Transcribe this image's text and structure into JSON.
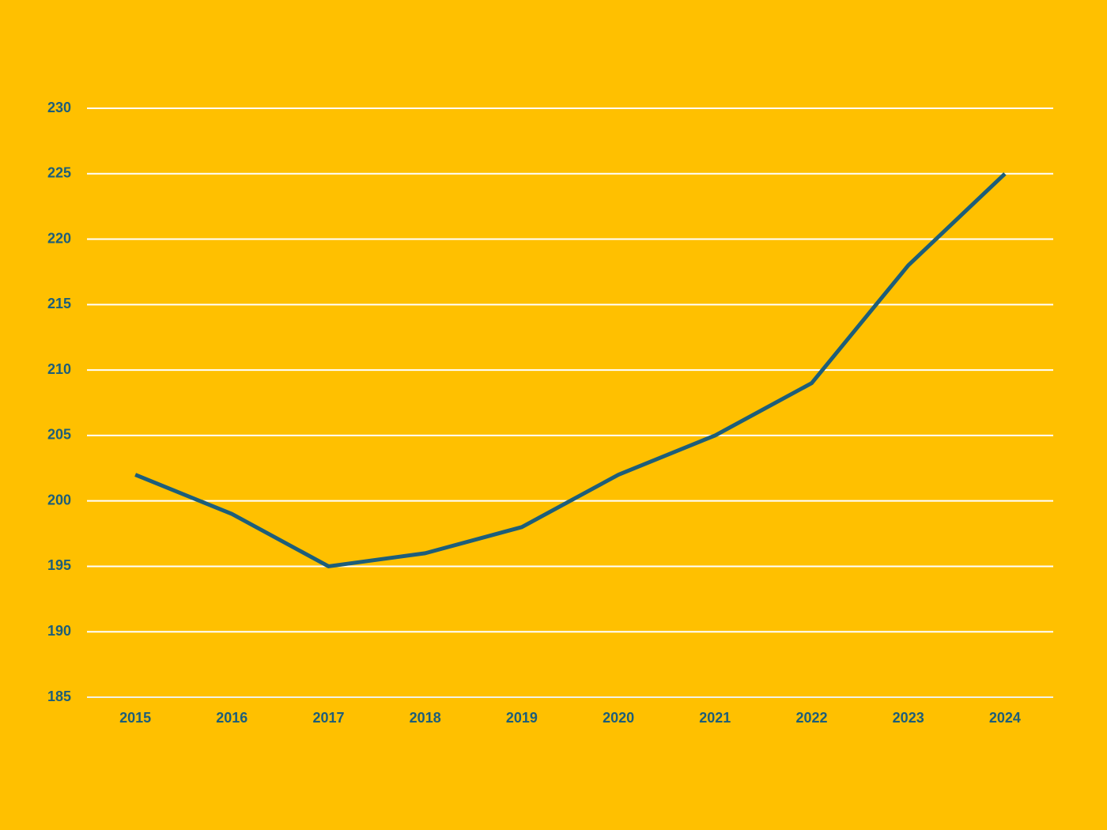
{
  "chart_data": {
    "type": "line",
    "categories": [
      "2015",
      "2016",
      "2017",
      "2018",
      "2019",
      "2020",
      "2021",
      "2022",
      "2023",
      "2024"
    ],
    "values": [
      202,
      199,
      195,
      196,
      198,
      202,
      205,
      209,
      218,
      225
    ],
    "color": "#1d5e7a",
    "ylim": [
      185,
      230
    ],
    "yticks": [
      185,
      190,
      195,
      200,
      205,
      210,
      215,
      220,
      225,
      230
    ],
    "grid": true
  }
}
